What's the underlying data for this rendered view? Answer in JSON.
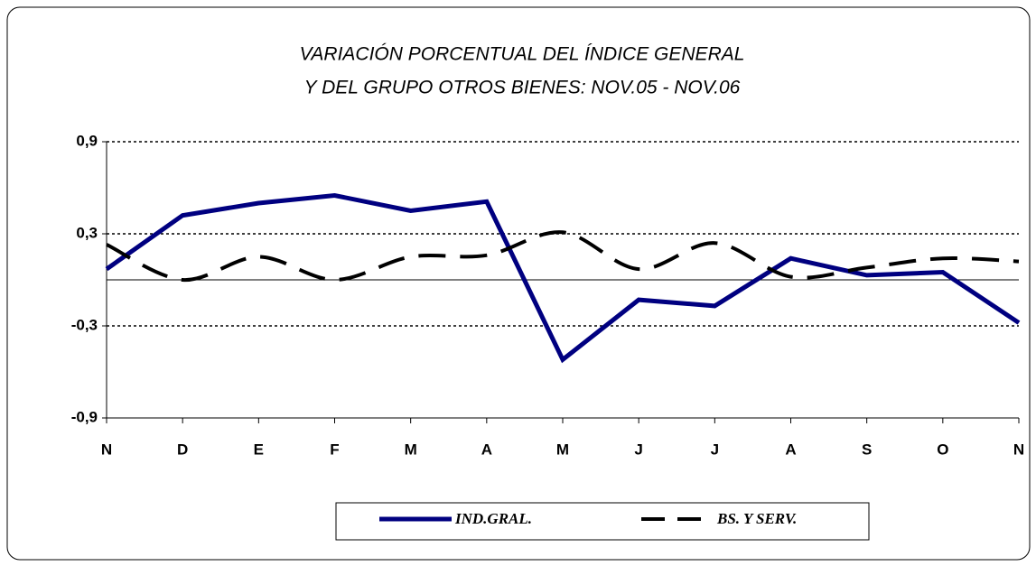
{
  "chart_data": {
    "type": "line",
    "title": "VARIACIÓN PORCENTUAL DEL ÍNDICE GENERAL",
    "subtitle": "Y DEL GRUPO OTROS BIENES: NOV.05 - NOV.06",
    "categories": [
      "N",
      "D",
      "E",
      "F",
      "M",
      "A",
      "M",
      "J",
      "J",
      "A",
      "S",
      "O",
      "N"
    ],
    "series": [
      {
        "name": "IND.GRAL.",
        "color": "#000080",
        "dashed": false,
        "smooth": false,
        "values": [
          0.07,
          0.42,
          0.5,
          0.55,
          0.45,
          0.51,
          -0.52,
          -0.13,
          -0.17,
          0.14,
          0.03,
          0.05,
          -0.28
        ]
      },
      {
        "name": "BS. Y SERV.",
        "color": "#000000",
        "dashed": true,
        "smooth": true,
        "values": [
          0.23,
          0.0,
          0.15,
          0.0,
          0.15,
          0.16,
          0.31,
          0.07,
          0.24,
          0.02,
          0.08,
          0.14,
          0.12
        ]
      }
    ],
    "ylim": [
      -0.9,
      0.9
    ],
    "yticks": [
      {
        "value": -0.9,
        "label": "-0,9"
      },
      {
        "value": -0.3,
        "label": "-0,3"
      },
      {
        "value": 0.3,
        "label": "0,3"
      },
      {
        "value": 0.9,
        "label": "0,9"
      }
    ],
    "grid": true,
    "legend": "bottom"
  }
}
